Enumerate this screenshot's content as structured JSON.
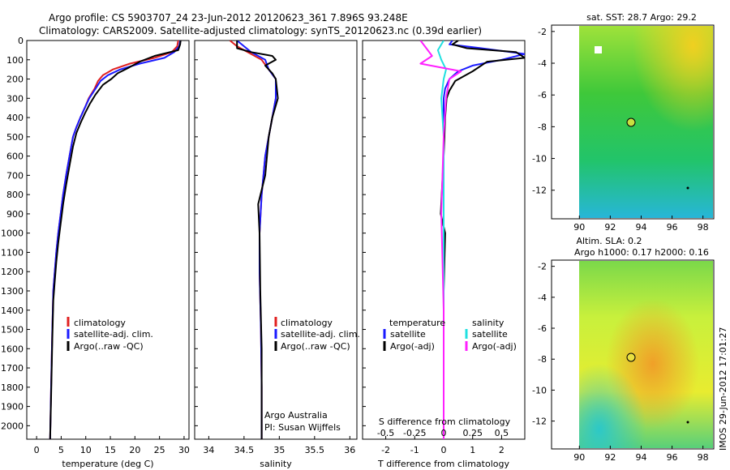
{
  "header": {
    "title_line1": "Argo profile: CS 5903707_24 23-Jun-2012 20120623_361 7.896S 93.248E",
    "title_line2": "Climatology: CARS2009. Satellite-adjusted climatology: synTS_20120623.nc (0.39d earlier)"
  },
  "colors": {
    "climatology": "#e02020",
    "satellite": "#1a1aff",
    "argo": "#000000",
    "salinity_satellite": "#20e0e0",
    "salinity_argo": "#ff20ff"
  },
  "depth_axis": {
    "ylim": [
      0,
      2070
    ],
    "ticks": [
      0,
      100,
      200,
      300,
      400,
      500,
      600,
      700,
      800,
      900,
      1000,
      1100,
      1200,
      1300,
      1400,
      1500,
      1600,
      1700,
      1800,
      1900,
      2000
    ]
  },
  "panels": {
    "temperature": {
      "xlabel": "temperature (deg C)",
      "xticks": [
        0,
        5,
        10,
        15,
        20,
        25,
        30
      ],
      "legend": [
        "climatology",
        "satellite-adj. clim.",
        "Argo(..raw -QC)"
      ]
    },
    "salinity": {
      "xlabel": "salinity",
      "xticks": [
        "34",
        "34.5",
        "35",
        "35.5",
        "36"
      ],
      "legend": [
        "climatology",
        "satellite-adj. clim.",
        "Argo(..raw -QC)"
      ],
      "note_line1": "Argo Australia",
      "note_line2": "PI: Susan Wijffels"
    },
    "difference": {
      "xlabel": "T difference from climatology",
      "top_label": "S difference from climatology",
      "top_ticks": [
        "-0.5",
        "-0.25",
        "0",
        "0.25",
        "0.5"
      ],
      "bottom_ticks": [
        "-2",
        "-1",
        "0",
        "1",
        "2"
      ],
      "legend_left_header": "temperature",
      "legend_left": [
        "satellite",
        "Argo(-adj)"
      ],
      "legend_right_header": "salinity",
      "legend_right": [
        "satellite",
        "Argo(-adj)"
      ]
    }
  },
  "maps": {
    "sst": {
      "title": "sat. SST: 28.7  Argo: 29.2",
      "yticks": [
        "-2",
        "-4",
        "-6",
        "-8",
        "-10",
        "-12"
      ],
      "xticks": [
        "90",
        "92",
        "94",
        "96",
        "98"
      ]
    },
    "sla": {
      "title_line1": "Altim. SLA: 0.2",
      "title_line2": "Argo h1000: 0.17 h2000: 0.16",
      "yticks": [
        "-2",
        "-4",
        "-6",
        "-8",
        "-10",
        "-12"
      ],
      "xticks": [
        "90",
        "92",
        "94",
        "96",
        "98"
      ]
    }
  },
  "footer_stamp": "IMOS 29-Jun-2012 17:01:27",
  "chart_data": [
    {
      "type": "line",
      "xlabel": "temperature (deg C)",
      "ylabel": "",
      "xlim": [
        -2,
        31
      ],
      "ylim": [
        0,
        2070
      ],
      "y_inverted": true,
      "series": [
        {
          "name": "climatology",
          "x": [
            28.8,
            28.6,
            27.5,
            24,
            19,
            15.5,
            13.5,
            12.5,
            11.8,
            10.6,
            9.8,
            8.9,
            8.1,
            7.4,
            6.7,
            6.0,
            5.4,
            4.9,
            4.4,
            4.0,
            3.7,
            3.4,
            3.2,
            2.95,
            2.75
          ],
          "y": [
            0,
            30,
            60,
            90,
            120,
            150,
            180,
            210,
            250,
            300,
            350,
            400,
            450,
            500,
            600,
            700,
            800,
            900,
            1000,
            1100,
            1200,
            1300,
            1500,
            1800,
            2070
          ]
        },
        {
          "name": "satellite-adj. clim.",
          "x": [
            29.2,
            29.0,
            28.0,
            26,
            21,
            17,
            14.5,
            13.0,
            12.0,
            10.7,
            9.8,
            8.9,
            8.1,
            7.4,
            6.7,
            6.0,
            5.4,
            4.9,
            4.4,
            4.0,
            3.7,
            3.4,
            3.2,
            2.95,
            2.75
          ],
          "y": [
            0,
            30,
            60,
            90,
            120,
            150,
            180,
            210,
            250,
            300,
            350,
            400,
            450,
            500,
            600,
            700,
            800,
            900,
            1000,
            1100,
            1200,
            1300,
            1500,
            1800,
            2070
          ]
        },
        {
          "name": "Argo(..raw -QC)",
          "x": [
            29.3,
            29.2,
            28.8,
            24,
            21,
            18.8,
            16.5,
            15.2,
            13.5,
            12.0,
            10.8,
            9.8,
            8.9,
            8.1,
            7.4,
            6.7,
            6.0,
            5.4,
            4.9,
            4.4,
            4.0,
            3.7,
            3.4,
            3.2,
            2.95,
            2.75
          ],
          "y": [
            0,
            20,
            50,
            80,
            110,
            140,
            170,
            200,
            230,
            280,
            330,
            380,
            430,
            480,
            550,
            650,
            750,
            850,
            950,
            1050,
            1150,
            1250,
            1350,
            1550,
            1850,
            2070
          ]
        }
      ]
    },
    {
      "type": "line",
      "xlabel": "salinity",
      "ylabel": "",
      "xlim": [
        33.8,
        36.1
      ],
      "ylim": [
        0,
        2070
      ],
      "y_inverted": true,
      "series": [
        {
          "name": "climatology",
          "x": [
            34.3,
            34.4,
            34.55,
            34.75,
            34.85,
            34.95,
            34.95,
            34.9,
            34.85,
            34.8,
            34.75,
            34.72,
            34.72,
            34.74,
            34.75,
            34.75
          ],
          "y": [
            0,
            30,
            60,
            100,
            150,
            200,
            300,
            400,
            500,
            600,
            800,
            1000,
            1200,
            1500,
            1800,
            2070
          ]
        },
        {
          "name": "satellite-adj. clim.",
          "x": [
            34.4,
            34.5,
            34.6,
            34.8,
            34.85,
            34.95,
            34.95,
            34.9,
            34.85,
            34.8,
            34.75,
            34.72,
            34.72,
            34.74,
            34.75,
            34.75
          ],
          "y": [
            0,
            30,
            60,
            100,
            150,
            200,
            300,
            400,
            500,
            600,
            800,
            1000,
            1200,
            1500,
            1800,
            2070
          ]
        },
        {
          "name": "Argo(..raw -QC)",
          "x": [
            34.4,
            34.4,
            34.6,
            34.9,
            34.95,
            34.8,
            34.9,
            34.95,
            34.98,
            34.9,
            34.85,
            34.8,
            34.7,
            34.72,
            34.73,
            34.75,
            34.75
          ],
          "y": [
            0,
            40,
            60,
            80,
            100,
            130,
            170,
            200,
            300,
            400,
            500,
            700,
            850,
            1000,
            1300,
            1600,
            2070
          ]
        }
      ]
    },
    {
      "type": "line",
      "xlabel": "T difference from climatology",
      "top_label": "S difference from climatology",
      "xlim": [
        -2.8,
        2.8
      ],
      "top_xlim": [
        -0.7,
        0.7
      ],
      "ylim": [
        0,
        2070
      ],
      "y_inverted": true,
      "series": [
        {
          "name": "temperature satellite",
          "axis": "T",
          "x": [
            0.3,
            0.2,
            1.3,
            2.8,
            2.0,
            1.0,
            0.5,
            0.2,
            0.05,
            0,
            0,
            0,
            0,
            0,
            0,
            0
          ],
          "y": [
            0,
            20,
            40,
            70,
            100,
            130,
            160,
            200,
            250,
            300,
            400,
            600,
            900,
            1200,
            1600,
            2070
          ]
        },
        {
          "name": "temperature Argo(-adj)",
          "axis": "T",
          "x": [
            0.5,
            0.3,
            0.8,
            2.5,
            2.8,
            1.5,
            1.0,
            0.4,
            0.2,
            0.1,
            0.05,
            0,
            -0.1,
            0.05,
            0,
            0,
            0
          ],
          "y": [
            0,
            20,
            40,
            60,
            90,
            110,
            160,
            210,
            260,
            300,
            400,
            600,
            900,
            1000,
            1300,
            1700,
            2070
          ]
        },
        {
          "name": "salinity satellite",
          "axis": "S",
          "x": [
            0.0,
            -0.05,
            -0.02,
            0.02,
            0,
            -0.02,
            0,
            0,
            0,
            0,
            0
          ],
          "y": [
            0,
            50,
            100,
            150,
            200,
            300,
            500,
            800,
            1200,
            1600,
            2070
          ]
        },
        {
          "name": "salinity Argo(-adj)",
          "axis": "S",
          "x": [
            -0.2,
            -0.15,
            -0.1,
            -0.2,
            0.15,
            0.05,
            0.02,
            0.0,
            -0.02,
            0.0,
            0.0
          ],
          "y": [
            0,
            40,
            80,
            120,
            160,
            200,
            300,
            500,
            900,
            1400,
            2070
          ]
        }
      ]
    }
  ]
}
